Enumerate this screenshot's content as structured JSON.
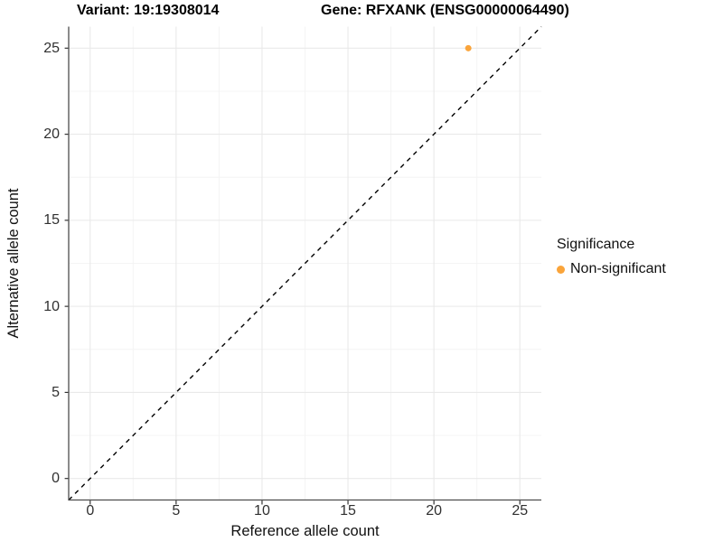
{
  "chart_data": {
    "type": "scatter",
    "title_variant": "Variant: 19:19308014",
    "title_gene": "Gene: RFXANK (ENSG00000064490)",
    "xlabel": "Reference allele count",
    "ylabel": "Alternative allele count",
    "x_ticks": [
      0,
      5,
      10,
      15,
      20,
      25
    ],
    "y_ticks": [
      0,
      5,
      10,
      15,
      20,
      25
    ],
    "xlim": [
      -1.25,
      26.25
    ],
    "ylim": [
      -1.25,
      26.25
    ],
    "grid": "major+minor",
    "identity_line": {
      "style": "dashed",
      "color": "#000000",
      "from": [
        -1.25,
        -1.25
      ],
      "to": [
        26.25,
        26.25
      ]
    },
    "series": [
      {
        "name": "Non-significant",
        "color": "#FAA43A",
        "marker": "circle",
        "points": [
          [
            22,
            25
          ]
        ]
      }
    ],
    "legend": {
      "title": "Significance",
      "position": "right",
      "entries": [
        {
          "label": "Non-significant",
          "color": "#FAA43A"
        }
      ]
    },
    "colors": {
      "grid_major": "#E9E9E9",
      "grid_minor": "#F4F4F4",
      "axis_line": "#4D4D4D",
      "tick_mark": "#333333",
      "tick_text": "#303030"
    }
  }
}
